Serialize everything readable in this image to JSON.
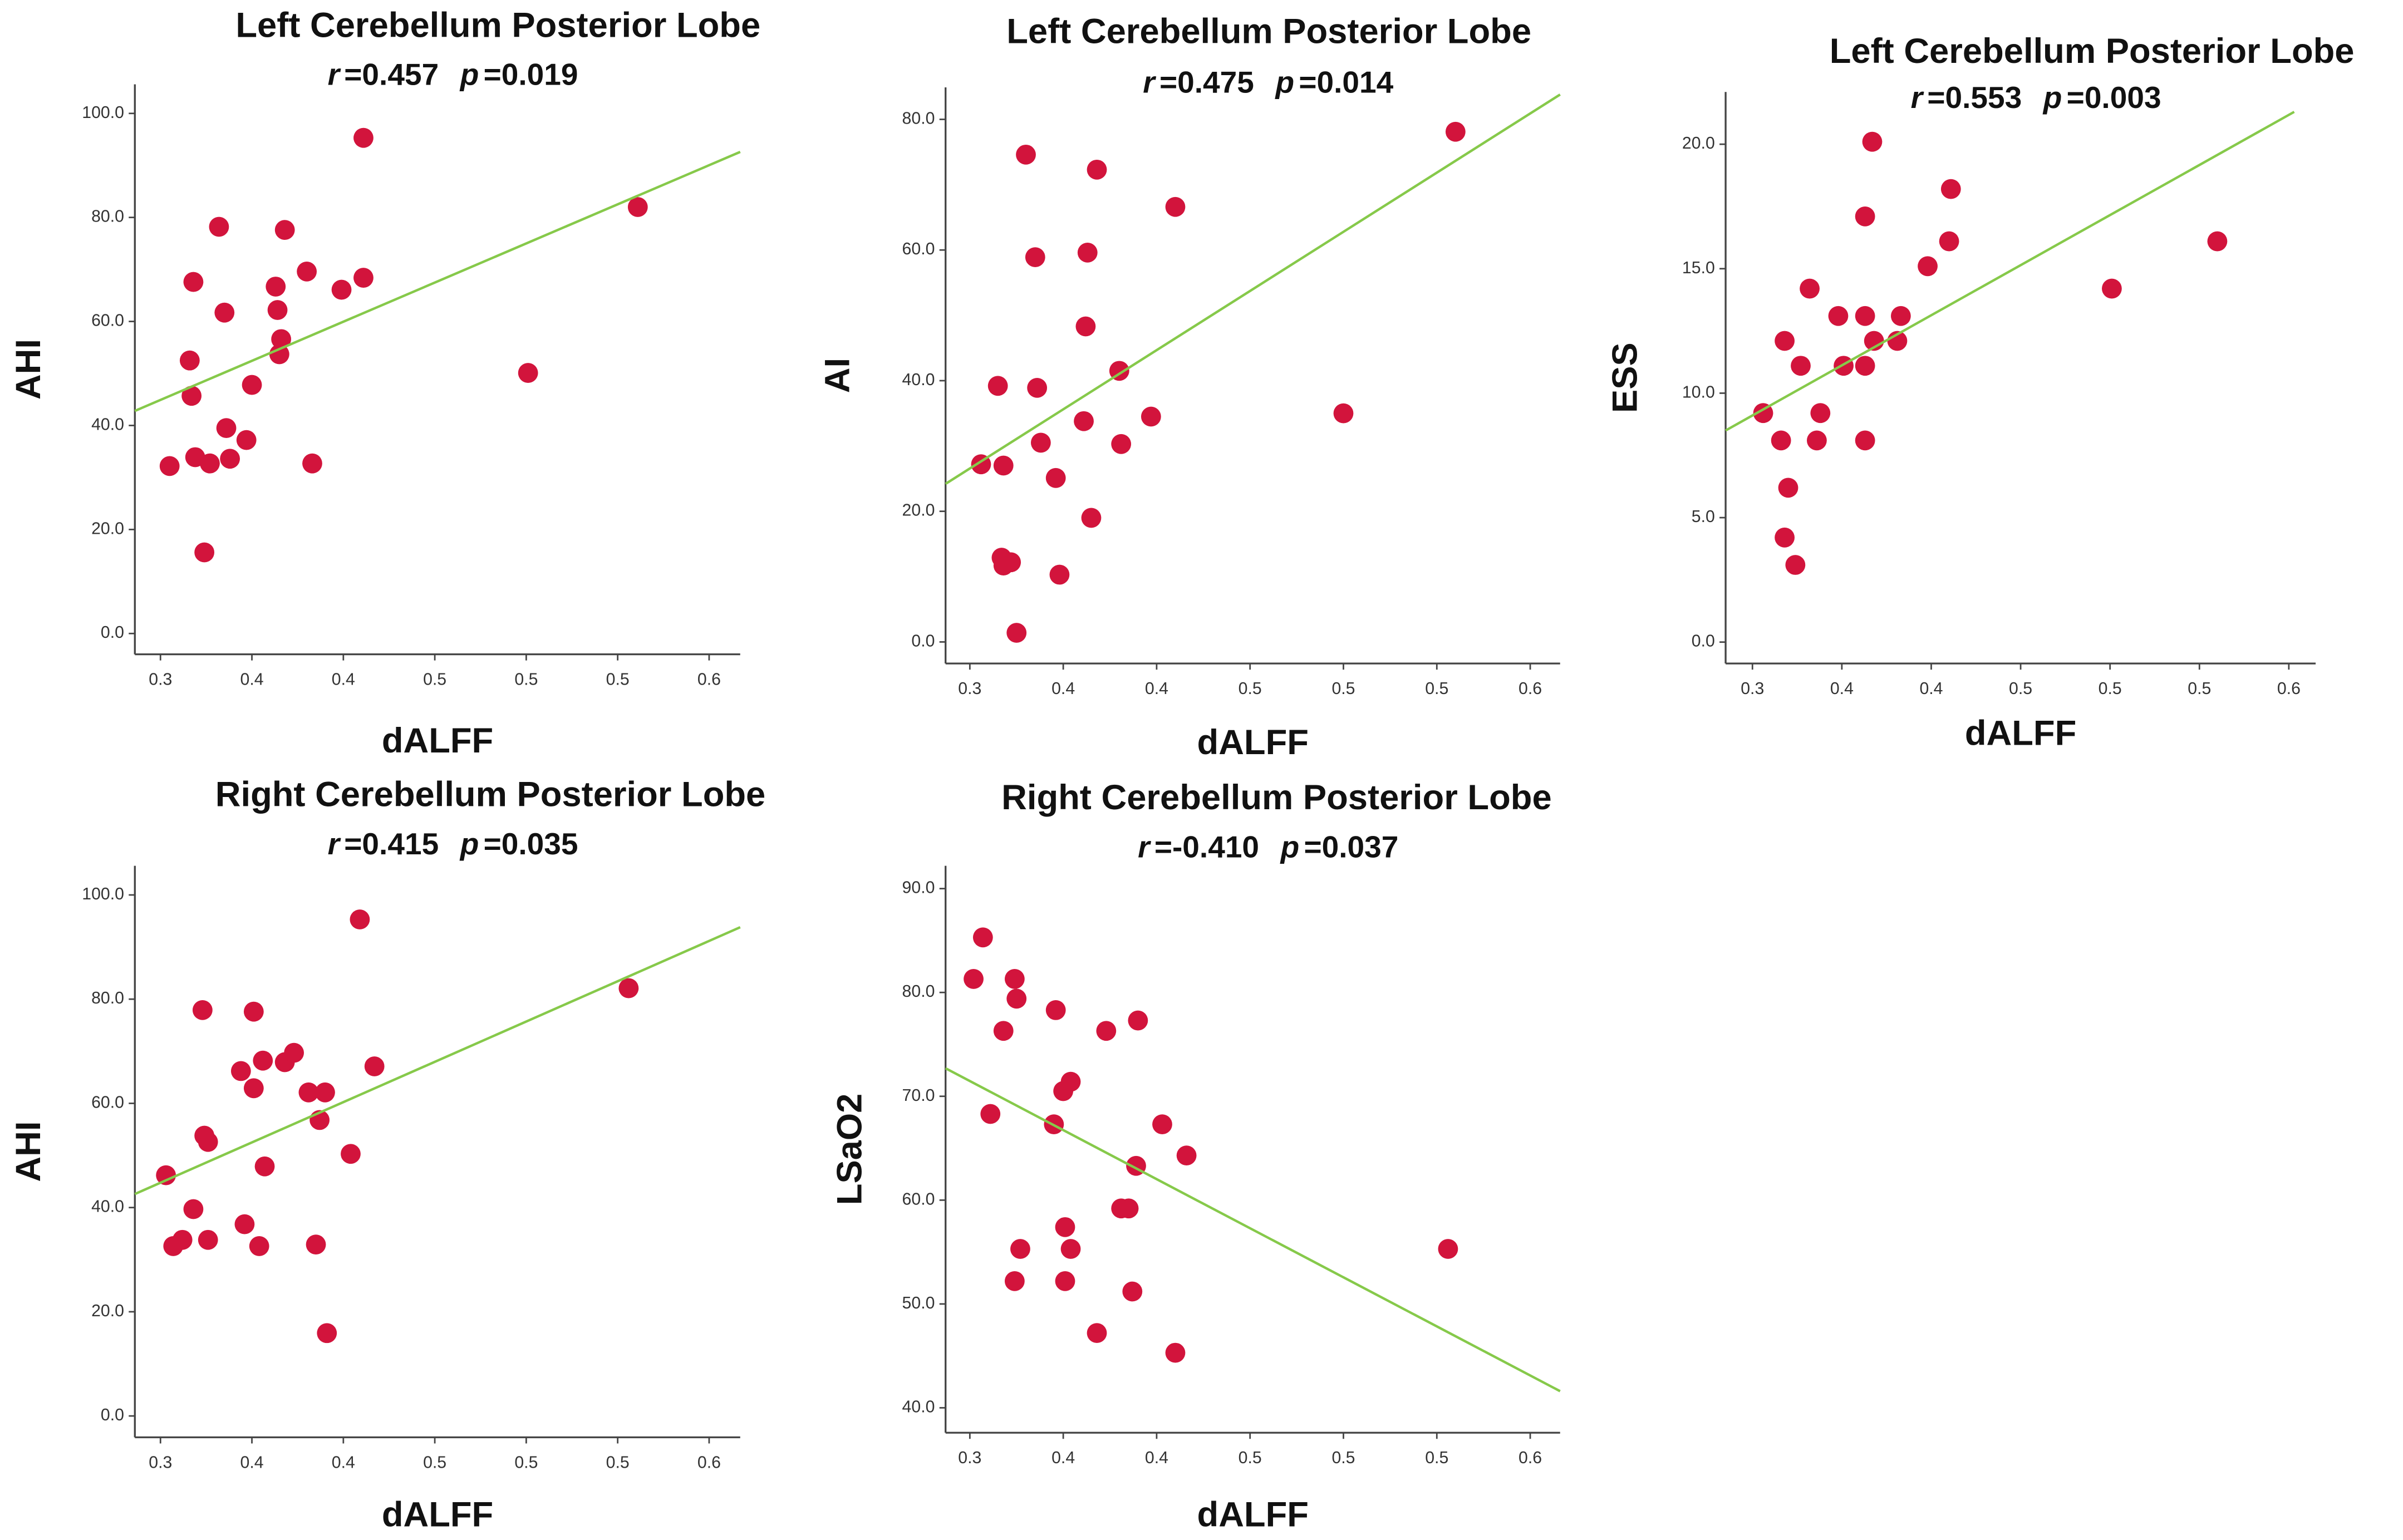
{
  "chart_data": [
    {
      "type": "scatter",
      "title": "Left Cerebellum Posterior Lobe",
      "annotations": [
        {
          "symbol": "r",
          "text": "=0.457"
        },
        {
          "symbol": "p",
          "text": "=0.019"
        }
      ],
      "x_label": "dALFF",
      "y_label": "AHI",
      "color": "#d2143c",
      "x": [
        0.305,
        0.317,
        0.316,
        0.318,
        0.319,
        0.324,
        0.327,
        0.332,
        0.335,
        0.336,
        0.338,
        0.347,
        0.35,
        0.363,
        0.364,
        0.365,
        0.366,
        0.368,
        0.38,
        0.383,
        0.399,
        0.411,
        0.411,
        0.501,
        0.561
      ],
      "values": [
        32.2,
        45.7,
        52.5,
        67.6,
        33.9,
        15.6,
        32.7,
        78.2,
        61.7,
        39.5,
        33.6,
        37.2,
        47.8,
        66.7,
        62.2,
        53.7,
        56.6,
        77.6,
        69.6,
        32.7,
        66.1,
        68.4,
        95.3,
        50.1,
        82.0
      ],
      "fit": {
        "color": "#86c94a",
        "x": [
          0.286,
          0.617
        ],
        "y": [
          42.8,
          92.6
        ]
      },
      "xlim": [
        0.286,
        0.617
      ],
      "ylim": [
        -4,
        105.6
      ],
      "xticks": [
        0.3,
        {
          "value": 0.35,
          "label": "0.4"
        },
        0.4,
        {
          "value": 0.45,
          "label": "0.5"
        },
        0.5,
        {
          "value": 0.55,
          "label": "0.5"
        },
        0.6
      ],
      "yticks": [
        {
          "value": 0,
          "label": "0.0"
        },
        {
          "value": 20,
          "label": "20.0"
        },
        {
          "value": 40,
          "label": "40.0"
        },
        {
          "value": 60,
          "label": "60.0"
        },
        {
          "value": 80,
          "label": "80.0"
        },
        {
          "value": 100,
          "label": "100.0"
        }
      ]
    },
    {
      "type": "scatter",
      "title": "Left Cerebellum Posterior Lobe",
      "annotations": [
        {
          "symbol": "r",
          "text": "=0.475"
        },
        {
          "symbol": "p",
          "text": "=0.014"
        }
      ],
      "x_label": "dALFF",
      "y_label": "AI",
      "color": "#d2143c",
      "x": [
        0.306,
        0.315,
        0.318,
        0.317,
        0.318,
        0.322,
        0.325,
        0.33,
        0.335,
        0.336,
        0.338,
        0.346,
        0.348,
        0.361,
        0.362,
        0.363,
        0.365,
        0.368,
        0.38,
        0.381,
        0.397,
        0.41,
        0.5,
        0.56
      ],
      "values": [
        27.2,
        39.2,
        27.0,
        12.9,
        11.7,
        12.2,
        1.4,
        74.6,
        58.9,
        38.9,
        30.5,
        25.1,
        10.3,
        33.8,
        48.3,
        59.6,
        19.0,
        72.3,
        41.5,
        30.3,
        34.5,
        66.6,
        35.0,
        78.1
      ],
      "fit": {
        "color": "#86c94a",
        "x": [
          0.287,
          0.616
        ],
        "y": [
          24.2,
          83.8
        ]
      },
      "xlim": [
        0.287,
        0.616
      ],
      "ylim": [
        -3.3,
        84.9
      ],
      "xticks": [
        0.3,
        {
          "value": 0.35,
          "label": "0.4"
        },
        0.4,
        {
          "value": 0.45,
          "label": "0.5"
        },
        0.5,
        {
          "value": 0.55,
          "label": "0.5"
        },
        0.6
      ],
      "yticks": [
        {
          "value": 0,
          "label": "0.0"
        },
        {
          "value": 20,
          "label": "20.0"
        },
        {
          "value": 40,
          "label": "40.0"
        },
        {
          "value": 60,
          "label": "60.0"
        },
        {
          "value": 80,
          "label": "80.0"
        }
      ]
    },
    {
      "type": "scatter",
      "title": "Left Cerebellum Posterior Lobe",
      "annotations": [
        {
          "symbol": "r",
          "text": "=0.553"
        },
        {
          "symbol": "p",
          "text": "=0.003"
        }
      ],
      "x_label": "dALFF",
      "y_label": "ESS",
      "color": "#d2143c",
      "x": [
        0.306,
        0.316,
        0.318,
        0.318,
        0.32,
        0.324,
        0.327,
        0.332,
        0.336,
        0.338,
        0.348,
        0.351,
        0.363,
        0.363,
        0.363,
        0.363,
        0.367,
        0.368,
        0.381,
        0.383,
        0.398,
        0.41,
        0.411,
        0.501,
        0.56
      ],
      "values": [
        9.2,
        8.1,
        12.1,
        4.2,
        6.2,
        3.1,
        11.1,
        14.2,
        8.1,
        9.2,
        13.1,
        11.1,
        11.1,
        17.1,
        13.1,
        8.1,
        20.1,
        12.1,
        12.1,
        13.1,
        15.1,
        16.1,
        18.2,
        14.2,
        16.1
      ],
      "fit": {
        "color": "#86c94a",
        "x": [
          0.285,
          0.603
        ],
        "y": [
          8.5,
          21.3
        ]
      },
      "xlim": [
        0.285,
        0.615
      ],
      "ylim": [
        -0.86,
        22.1
      ],
      "xticks": [
        0.3,
        {
          "value": 0.35,
          "label": "0.4"
        },
        0.4,
        {
          "value": 0.45,
          "label": "0.5"
        },
        0.5,
        {
          "value": 0.55,
          "label": "0.5"
        },
        0.6
      ],
      "yticks": [
        {
          "value": 0,
          "label": "0.0"
        },
        {
          "value": 5,
          "label": "5.0"
        },
        {
          "value": 10,
          "label": "10.0"
        },
        {
          "value": 15,
          "label": "15.0"
        },
        {
          "value": 20,
          "label": "20.0"
        }
      ]
    },
    {
      "type": "scatter",
      "title": "Right Cerebellum Posterior Lobe",
      "annotations": [
        {
          "symbol": "r",
          "text": "=0.415"
        },
        {
          "symbol": "p",
          "text": "=0.035"
        }
      ],
      "x_label": "dALFF",
      "y_label": "AHI",
      "color": "#d2143c",
      "x": [
        0.303,
        0.307,
        0.312,
        0.318,
        0.323,
        0.324,
        0.326,
        0.326,
        0.344,
        0.346,
        0.351,
        0.351,
        0.354,
        0.356,
        0.357,
        0.368,
        0.373,
        0.381,
        0.385,
        0.387,
        0.39,
        0.391,
        0.404,
        0.409,
        0.417,
        0.556
      ],
      "values": [
        46.2,
        32.6,
        33.8,
        39.7,
        77.9,
        53.8,
        52.6,
        33.8,
        66.2,
        36.8,
        77.6,
        62.9,
        32.6,
        68.2,
        47.9,
        67.9,
        69.7,
        62.1,
        32.9,
        56.8,
        62.1,
        15.9,
        50.3,
        95.3,
        67.1,
        82.1
      ],
      "fit": {
        "color": "#86c94a",
        "x": [
          0.286,
          0.617
        ],
        "y": [
          42.6,
          93.8
        ]
      },
      "xlim": [
        0.286,
        0.617
      ],
      "ylim": [
        -4.1,
        105.6
      ],
      "xticks": [
        0.3,
        {
          "value": 0.35,
          "label": "0.4"
        },
        0.4,
        {
          "value": 0.45,
          "label": "0.5"
        },
        0.5,
        {
          "value": 0.55,
          "label": "0.5"
        },
        0.6
      ],
      "yticks": [
        {
          "value": 0,
          "label": "0.0"
        },
        {
          "value": 20,
          "label": "20.0"
        },
        {
          "value": 40,
          "label": "40.0"
        },
        {
          "value": 60,
          "label": "60.0"
        },
        {
          "value": 80,
          "label": "80.0"
        },
        {
          "value": 100,
          "label": "100.0"
        }
      ]
    },
    {
      "type": "scatter",
      "title": "Right Cerebellum Posterior Lobe",
      "annotations": [
        {
          "symbol": "r",
          "text": "=-0.410"
        },
        {
          "symbol": "p",
          "text": "=0.037"
        }
      ],
      "x_label": "dALFF",
      "y_label": "LSaO2",
      "color": "#d2143c",
      "x": [
        0.302,
        0.307,
        0.311,
        0.318,
        0.324,
        0.325,
        0.324,
        0.327,
        0.345,
        0.346,
        0.35,
        0.351,
        0.351,
        0.354,
        0.354,
        0.368,
        0.373,
        0.381,
        0.385,
        0.387,
        0.389,
        0.39,
        0.403,
        0.41,
        0.416,
        0.556
      ],
      "values": [
        81.3,
        85.3,
        68.3,
        76.3,
        81.3,
        79.4,
        52.2,
        55.3,
        67.3,
        78.3,
        70.5,
        57.4,
        52.2,
        71.4,
        55.3,
        47.2,
        76.3,
        59.2,
        59.2,
        51.2,
        63.3,
        77.3,
        67.3,
        45.3,
        64.3,
        55.3
      ],
      "fit": {
        "color": "#86c94a",
        "x": [
          0.287,
          0.616
        ],
        "y": [
          72.7,
          41.6
        ]
      },
      "xlim": [
        0.287,
        0.616
      ],
      "ylim": [
        37.6,
        92.2
      ],
      "xticks": [
        0.3,
        {
          "value": 0.35,
          "label": "0.4"
        },
        0.4,
        {
          "value": 0.45,
          "label": "0.5"
        },
        0.5,
        {
          "value": 0.55,
          "label": "0.5"
        },
        0.6
      ],
      "yticks": [
        {
          "value": 40,
          "label": "40.0"
        },
        {
          "value": 50,
          "label": "50.0"
        },
        {
          "value": 60,
          "label": "60.0"
        },
        {
          "value": 70,
          "label": "70.0"
        },
        {
          "value": 80,
          "label": "80.0"
        },
        {
          "value": 90,
          "label": "90.0"
        }
      ]
    }
  ]
}
